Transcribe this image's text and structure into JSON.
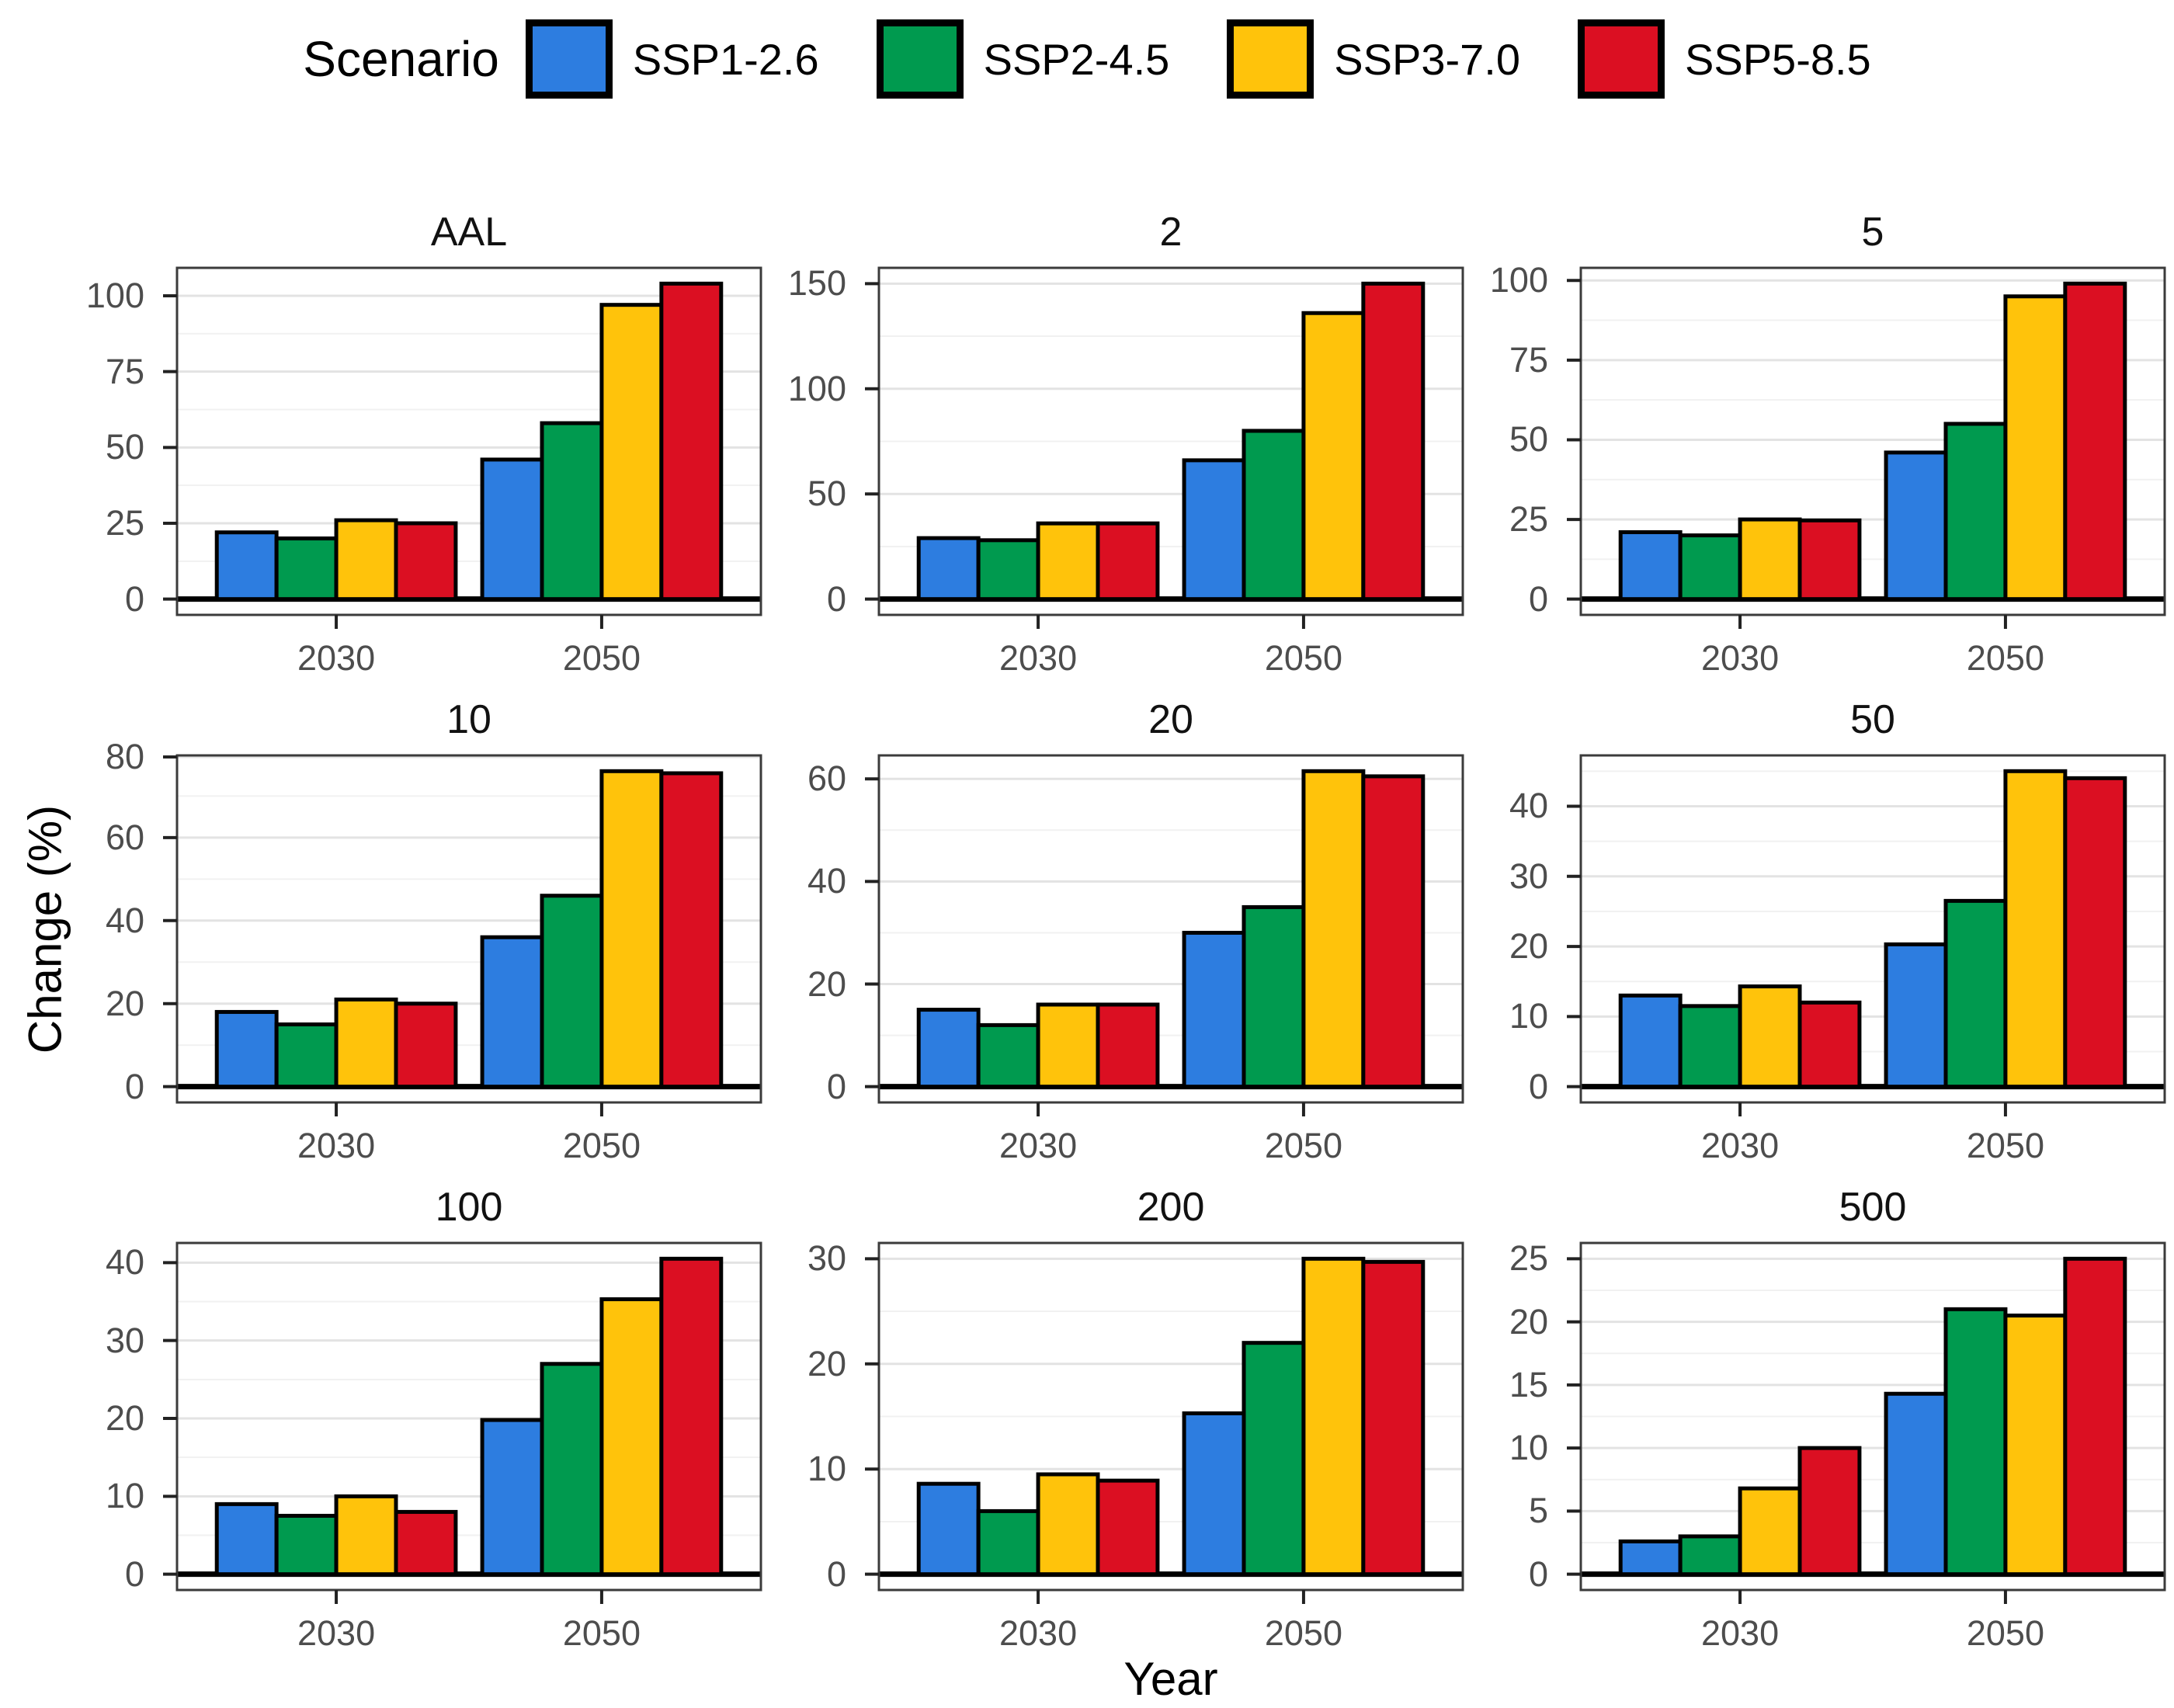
{
  "legend": {
    "title": "Scenario"
  },
  "axes": {
    "x_title": "Year",
    "y_title": "Change (%)"
  },
  "chart_data": {
    "type": "bar",
    "layout": "3x3 facet grid",
    "grid": true,
    "legend_position": "top",
    "xlabel": "Year",
    "ylabel": "Change (%)",
    "categories": [
      "2030",
      "2050"
    ],
    "series": [
      {
        "name": "SSP1-2.6",
        "color": "#2D7DE0"
      },
      {
        "name": "SSP2-4.5",
        "color": "#009A4F"
      },
      {
        "name": "SSP3-7.0",
        "color": "#FFC30B"
      },
      {
        "name": "SSP5-8.5",
        "color": "#DB0F22"
      }
    ],
    "facets": [
      {
        "title": "AAL",
        "yticks": [
          0,
          25,
          50,
          75,
          100
        ],
        "series": [
          {
            "name": "SSP1-2.6",
            "values": [
              22,
              46
            ]
          },
          {
            "name": "SSP2-4.5",
            "values": [
              20,
              58
            ]
          },
          {
            "name": "SSP3-7.0",
            "values": [
              26,
              97
            ]
          },
          {
            "name": "SSP5-8.5",
            "values": [
              25,
              104
            ]
          }
        ]
      },
      {
        "title": "2",
        "yticks": [
          0,
          50,
          100,
          150
        ],
        "series": [
          {
            "name": "SSP1-2.6",
            "values": [
              29,
              66
            ]
          },
          {
            "name": "SSP2-4.5",
            "values": [
              28,
              80
            ]
          },
          {
            "name": "SSP3-7.0",
            "values": [
              36,
              136
            ]
          },
          {
            "name": "SSP5-8.5",
            "values": [
              36,
              150
            ]
          }
        ]
      },
      {
        "title": "5",
        "yticks": [
          0,
          25,
          50,
          75,
          100
        ],
        "series": [
          {
            "name": "SSP1-2.6",
            "values": [
              21,
              46
            ]
          },
          {
            "name": "SSP2-4.5",
            "values": [
              20,
              55
            ]
          },
          {
            "name": "SSP3-7.0",
            "values": [
              25,
              95
            ]
          },
          {
            "name": "SSP5-8.5",
            "values": [
              24.7,
              99
            ]
          }
        ]
      },
      {
        "title": "10",
        "yticks": [
          0,
          20,
          40,
          60,
          80
        ],
        "series": [
          {
            "name": "SSP1-2.6",
            "values": [
              18,
              36
            ]
          },
          {
            "name": "SSP2-4.5",
            "values": [
              15,
              46
            ]
          },
          {
            "name": "SSP3-7.0",
            "values": [
              21,
              76
            ]
          },
          {
            "name": "SSP5-8.5",
            "values": [
              20,
              75.5
            ]
          }
        ]
      },
      {
        "title": "20",
        "yticks": [
          0,
          20,
          40,
          60
        ],
        "series": [
          {
            "name": "SSP1-2.6",
            "values": [
              15,
              30
            ]
          },
          {
            "name": "SSP2-4.5",
            "values": [
              12,
              35
            ]
          },
          {
            "name": "SSP3-7.0",
            "values": [
              16,
              61.5
            ]
          },
          {
            "name": "SSP5-8.5",
            "values": [
              16,
              60.5
            ]
          }
        ]
      },
      {
        "title": "50",
        "yticks": [
          0,
          10,
          20,
          30,
          40
        ],
        "series": [
          {
            "name": "SSP1-2.6",
            "values": [
              13,
              20.3
            ]
          },
          {
            "name": "SSP2-4.5",
            "values": [
              11.5,
              26.5
            ]
          },
          {
            "name": "SSP3-7.0",
            "values": [
              14.3,
              45
            ]
          },
          {
            "name": "SSP5-8.5",
            "values": [
              12,
              44
            ]
          }
        ]
      },
      {
        "title": "100",
        "yticks": [
          0,
          10,
          20,
          30,
          40
        ],
        "series": [
          {
            "name": "SSP1-2.6",
            "values": [
              9,
              19.8
            ]
          },
          {
            "name": "SSP2-4.5",
            "values": [
              7.5,
              27
            ]
          },
          {
            "name": "SSP3-7.0",
            "values": [
              10,
              35.3
            ]
          },
          {
            "name": "SSP5-8.5",
            "values": [
              8,
              40.5
            ]
          }
        ]
      },
      {
        "title": "200",
        "yticks": [
          0,
          10,
          20,
          30
        ],
        "series": [
          {
            "name": "SSP1-2.6",
            "values": [
              8.6,
              15.3
            ]
          },
          {
            "name": "SSP2-4.5",
            "values": [
              6,
              22
            ]
          },
          {
            "name": "SSP3-7.0",
            "values": [
              9.5,
              30
            ]
          },
          {
            "name": "SSP5-8.5",
            "values": [
              8.9,
              29.7
            ]
          }
        ]
      },
      {
        "title": "500",
        "yticks": [
          0,
          5,
          10,
          15,
          20,
          25
        ],
        "series": [
          {
            "name": "SSP1-2.6",
            "values": [
              2.6,
              14.3
            ]
          },
          {
            "name": "SSP2-4.5",
            "values": [
              3,
              21
            ]
          },
          {
            "name": "SSP3-7.0",
            "values": [
              6.8,
              20.5
            ]
          },
          {
            "name": "SSP5-8.5",
            "values": [
              10,
              25
            ]
          }
        ]
      }
    ]
  }
}
